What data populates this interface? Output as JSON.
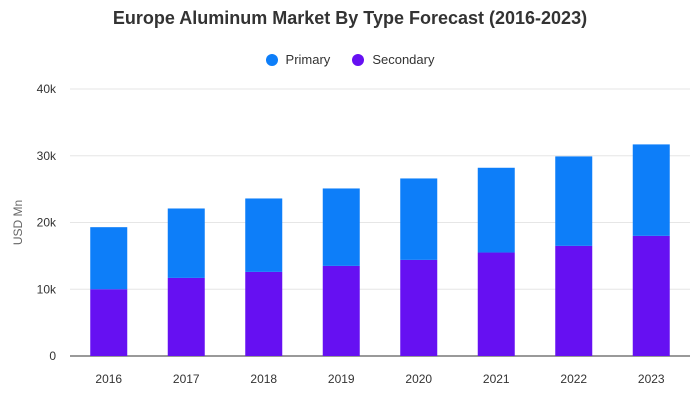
{
  "chart_data": {
    "type": "bar",
    "stacked": true,
    "title": "Europe Aluminum Market By Type Forecast (2016-2023)",
    "xlabel": "",
    "ylabel": "USD Mn",
    "categories": [
      "2016",
      "2017",
      "2018",
      "2019",
      "2020",
      "2021",
      "2022",
      "2023"
    ],
    "series": [
      {
        "name": "Secondary",
        "color": "#6610f2",
        "values": [
          10000,
          11700,
          12600,
          13500,
          14400,
          15500,
          16500,
          18000
        ]
      },
      {
        "name": "Primary",
        "color": "#0d7ef9",
        "values": [
          9300,
          10400,
          11000,
          11600,
          12200,
          12700,
          13400,
          13700
        ]
      }
    ],
    "ylim": [
      0,
      40000
    ],
    "yticks": [
      0,
      10000,
      20000,
      30000,
      40000
    ],
    "ytick_labels": [
      "0",
      "10k",
      "20k",
      "30k",
      "40k"
    ],
    "grid": true,
    "legend_position": "top-center",
    "legend": [
      {
        "name": "Primary",
        "color": "#0d7ef9"
      },
      {
        "name": "Secondary",
        "color": "#6610f2"
      }
    ]
  }
}
